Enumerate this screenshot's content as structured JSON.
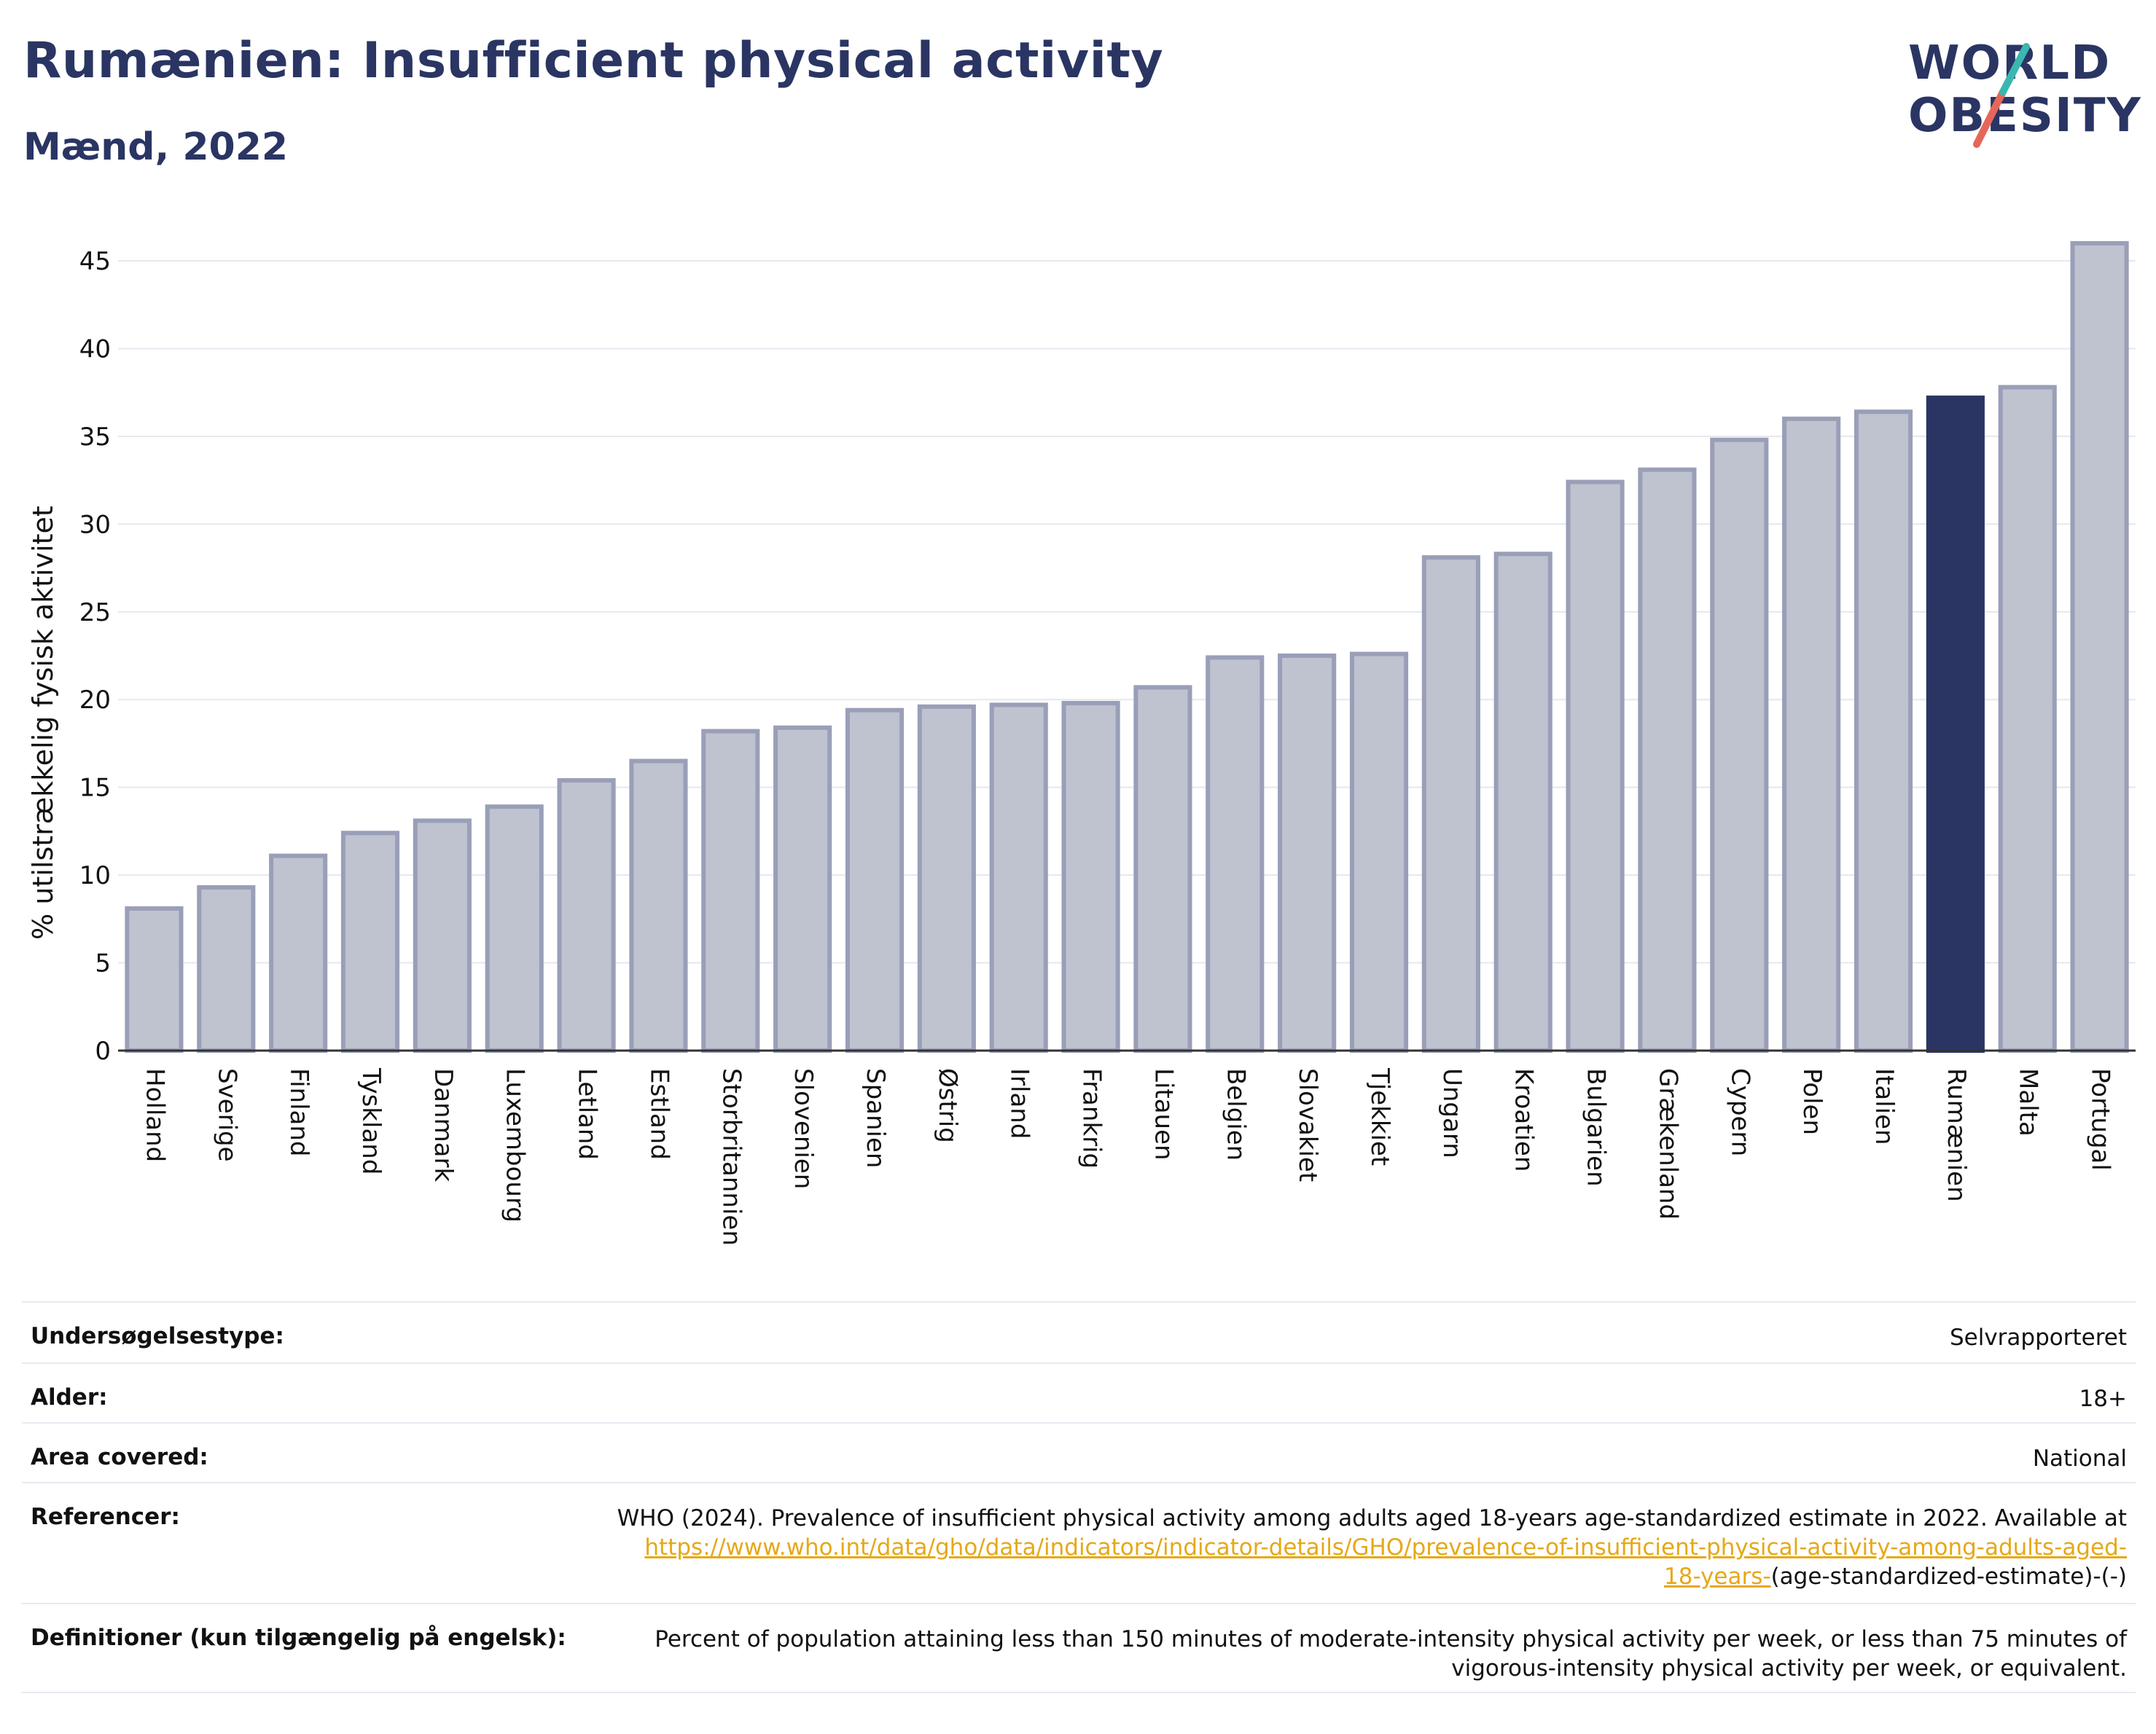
{
  "header": {
    "title": "Rumænien: Insufficient physical activity",
    "subtitle": "Mænd, 2022"
  },
  "logo": {
    "line1": "WORLD",
    "line2": "OBESITY"
  },
  "colors": {
    "title": "#2a3563",
    "bar": "#bfc2cf",
    "bar_stroke": "#9a9fb8",
    "highlight_bar": "#2a3563",
    "logo_slash_top": "#3ab7b0",
    "logo_slash_bottom": "#e5675a",
    "link": "#e6a817"
  },
  "chart_data": {
    "type": "bar",
    "ylabel": "% utilstrækkelig fysisk aktivitet",
    "ylim": [
      0,
      47
    ],
    "yticks": [
      0,
      5,
      10,
      15,
      20,
      25,
      30,
      35,
      40,
      45
    ],
    "grid": true,
    "highlight": "Rumænien",
    "categories": [
      "Holland",
      "Sverige",
      "Finland",
      "Tyskland",
      "Danmark",
      "Luxembourg",
      "Letland",
      "Estland",
      "Storbritannien",
      "Slovenien",
      "Spanien",
      "Østrig",
      "Irland",
      "Frankrig",
      "Litauen",
      "Belgien",
      "Slovakiet",
      "Tjekkiet",
      "Ungarn",
      "Kroatien",
      "Bulgarien",
      "Grækenland",
      "Cypern",
      "Polen",
      "Italien",
      "Rumænien",
      "Malta",
      "Portugal"
    ],
    "values": [
      8.1,
      9.3,
      11.1,
      12.4,
      13.1,
      13.9,
      15.4,
      16.5,
      18.2,
      18.4,
      19.4,
      19.6,
      19.7,
      19.8,
      20.7,
      22.4,
      22.5,
      22.6,
      28.1,
      28.3,
      32.4,
      33.1,
      34.8,
      36.0,
      36.4,
      37.2,
      37.8,
      46.0
    ]
  },
  "meta": {
    "rows": [
      {
        "label": "Undersøgelsestype:",
        "value": "Selvrapporteret"
      },
      {
        "label": "Alder:",
        "value": "18+"
      },
      {
        "label": "Area covered:",
        "value": "National"
      }
    ],
    "references": {
      "label": "Referencer:",
      "text": "WHO (2024). Prevalence of insufficient physical activity among adults aged 18-years age-standardized estimate in 2022. Available at",
      "link_part1": "https://www.who.int/data/gho/data/indicators/indicator-details/GHO/prevalence-of-insufficient-physical-activity-among-adults-aged-",
      "link_part2": "18-years-",
      "suffix": "(age-standardized-estimate)-(-)"
    },
    "definitions": {
      "label": "Definitioner (kun tilgængelig på engelsk):",
      "line1": "Percent of population attaining less than 150 minutes of moderate-intensity physical activity per week, or less than 75 minutes of",
      "line2": "vigorous-intensity physical activity per week, or equivalent."
    }
  }
}
